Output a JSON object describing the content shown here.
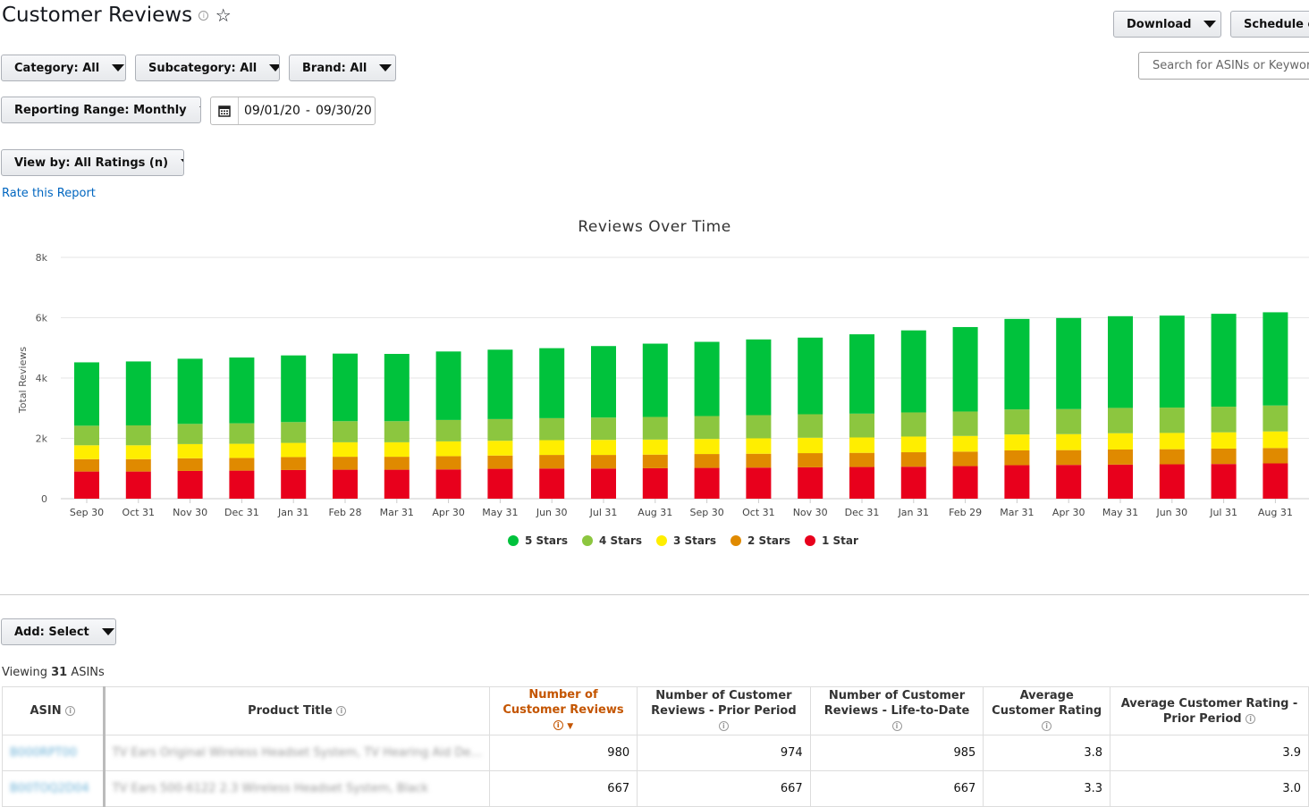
{
  "page": {
    "title": "Customer Reviews",
    "info_icon": "info-icon",
    "star_icon": "star-outline-icon"
  },
  "toolbar": {
    "download_label": "Download",
    "schedule_label": "Schedule en",
    "search_placeholder": "Search for ASINs or Keywords"
  },
  "filters": {
    "category": "Category: All",
    "subcategory": "Subcategory: All",
    "brand": "Brand: All",
    "reporting_range": "Reporting Range: Monthly",
    "date_start": "09/01/20",
    "date_sep": "-",
    "date_end": "09/30/20",
    "view_by": "View by: All Ratings (n)"
  },
  "rate_link": "Rate this Report",
  "chart_data": {
    "type": "bar",
    "stacked": true,
    "title": "Reviews Over Time",
    "ylabel": "Total Reviews",
    "xlabel": "",
    "ylim": [
      0,
      8000
    ],
    "yticks": [
      "0",
      "2k",
      "4k",
      "6k",
      "8k"
    ],
    "grid": true,
    "legend_position": "bottom",
    "categories": [
      "Sep 30",
      "Oct 31",
      "Nov 30",
      "Dec 31",
      "Jan 31",
      "Feb 28",
      "Mar 31",
      "Apr 30",
      "May 31",
      "Jun 30",
      "Jul 31",
      "Aug 31",
      "Sep 30",
      "Oct 31",
      "Nov 30",
      "Dec 31",
      "Jan 31",
      "Feb 29",
      "Mar 31",
      "Apr 30",
      "May 31",
      "Jun 30",
      "Jul 31",
      "Aug 31"
    ],
    "series": [
      {
        "name": "1 Star",
        "color": "#e8001c",
        "values": [
          900,
          900,
          920,
          930,
          950,
          960,
          960,
          970,
          990,
          1000,
          1000,
          1010,
          1020,
          1030,
          1040,
          1050,
          1060,
          1080,
          1110,
          1120,
          1130,
          1140,
          1150,
          1170
        ]
      },
      {
        "name": "2 Stars",
        "color": "#e08a00",
        "values": [
          410,
          410,
          420,
          420,
          430,
          430,
          430,
          440,
          440,
          450,
          450,
          450,
          460,
          460,
          470,
          470,
          480,
          480,
          490,
          490,
          500,
          500,
          510,
          510
        ]
      },
      {
        "name": "3 Stars",
        "color": "#ffee00",
        "values": [
          460,
          460,
          470,
          470,
          470,
          480,
          480,
          490,
          490,
          490,
          500,
          500,
          500,
          510,
          510,
          510,
          520,
          520,
          530,
          530,
          540,
          540,
          540,
          550
        ]
      },
      {
        "name": "4 Stars",
        "color": "#8cc63f",
        "values": [
          650,
          660,
          670,
          680,
          690,
          700,
          700,
          710,
          720,
          730,
          740,
          750,
          760,
          770,
          780,
          790,
          800,
          810,
          830,
          830,
          840,
          840,
          850,
          860
        ]
      },
      {
        "name": "5 Stars",
        "color": "#00c23c",
        "values": [
          2100,
          2120,
          2160,
          2180,
          2210,
          2240,
          2230,
          2270,
          2300,
          2320,
          2370,
          2430,
          2460,
          2510,
          2540,
          2630,
          2720,
          2800,
          3000,
          3020,
          3040,
          3050,
          3080,
          3090
        ]
      }
    ],
    "legend_order": [
      "5 Stars",
      "4 Stars",
      "3 Stars",
      "2 Stars",
      "1 Star"
    ]
  },
  "add_select": "Add: Select",
  "viewing": {
    "prefix": "Viewing ",
    "count": "31",
    "suffix": " ASINs"
  },
  "table": {
    "headers": [
      "ASIN",
      "Product Title",
      "Number of Customer Reviews",
      "Number of Customer Reviews - Prior Period",
      "Number of Customer Reviews - Life-to-Date",
      "Average Customer Rating",
      "Average Customer Rating - Prior Period"
    ],
    "rows": [
      {
        "asin": "B000RPT00",
        "title": "TV Ears Original Wireless Headset System, TV Hearing Aid De...",
        "reviews": "980",
        "prior": "974",
        "ltd": "985",
        "rating": "3.8",
        "rating_prior": "3.9"
      },
      {
        "asin": "B00TOQ2D04",
        "title": "TV Ears 500-6122 2.3 Wireless Headset System, Black",
        "reviews": "667",
        "prior": "667",
        "ltd": "667",
        "rating": "3.3",
        "rating_prior": "3.0"
      }
    ]
  }
}
